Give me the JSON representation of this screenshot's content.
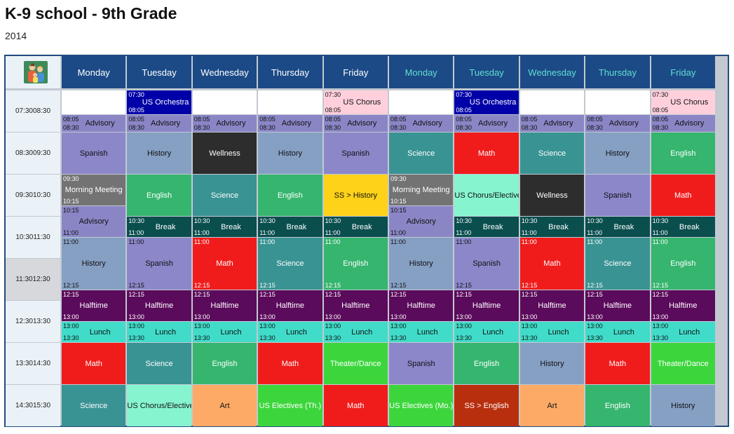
{
  "page": {
    "title": "K-9 school - 9th Grade",
    "subtitle": "2014"
  },
  "corner_icon": "family-icon",
  "days": [
    "Monday",
    "Tuesday",
    "Wednesday",
    "Thursday",
    "Friday",
    "Monday",
    "Tuesday",
    "Wednesday",
    "Thursday",
    "Friday"
  ],
  "time_rows": [
    {
      "start": "07:30",
      "end": "08:30"
    },
    {
      "start": "08:30",
      "end": "09:30"
    },
    {
      "start": "09:30",
      "end": "10:30"
    },
    {
      "start": "10:30",
      "end": "11:30"
    },
    {
      "start": "11:30",
      "end": "12:30"
    },
    {
      "start": "12:30",
      "end": "13:30"
    },
    {
      "start": "13:30",
      "end": "14:30"
    },
    {
      "start": "14:30",
      "end": "15:30"
    }
  ],
  "highlighted_time_row": 4,
  "colors": {
    "header_bg": "#1b4a86",
    "header_alt_text": "#62ddd0",
    "advisory": "#8a86c6",
    "spanish": "#8b87c9",
    "history": "#86a0c4",
    "wellness": "#2d2d2d",
    "science": "#3a9393",
    "math": "#f01c1c",
    "english": "#35b56e",
    "morning_meeting": "#737373",
    "ss_history": "#ffd21a",
    "chorus_elective": "#86f5cf",
    "break": "#0a4e4e",
    "halftime": "#5b0b5b",
    "lunch": "#40dcc9",
    "theater": "#3cd63c",
    "art": "#fdaa66",
    "us_electives": "#3cd63c",
    "ss_english": "#b82f0e",
    "orchestra": "#0000a8",
    "chorus": "#ffd0dc"
  },
  "events": [
    {
      "day": 0,
      "s": "07:30",
      "e": "08:05",
      "title": "",
      "color": "#ffffff",
      "text": "#000",
      "empty": true
    },
    {
      "day": 0,
      "s": "08:05",
      "e": "08:30",
      "title": "Advisory",
      "color": "#8a86c6",
      "text": "#111",
      "times": true
    },
    {
      "day": 0,
      "s": "08:30",
      "e": "09:30",
      "title": "Spanish",
      "color": "#8b87c9",
      "text": "#111"
    },
    {
      "day": 0,
      "s": "09:30",
      "e": "10:15",
      "title": "Morning Meeting",
      "color": "#737373",
      "text": "#fff",
      "times": true
    },
    {
      "day": 0,
      "s": "10:15",
      "e": "11:00",
      "title": "Advisory",
      "color": "#8a86c6",
      "text": "#111",
      "times": true
    },
    {
      "day": 0,
      "s": "11:00",
      "e": "12:15",
      "title": "History",
      "color": "#86a0c4",
      "text": "#111",
      "times": true
    },
    {
      "day": 0,
      "s": "12:15",
      "e": "13:00",
      "title": "Halftime",
      "color": "#5b0b5b",
      "text": "#fff",
      "times": true
    },
    {
      "day": 0,
      "s": "13:00",
      "e": "13:30",
      "title": "Lunch",
      "color": "#40dcc9",
      "text": "#111",
      "times": true
    },
    {
      "day": 0,
      "s": "13:30",
      "e": "14:30",
      "title": "Math",
      "color": "#f01c1c",
      "text": "#fff"
    },
    {
      "day": 0,
      "s": "14:30",
      "e": "15:30",
      "title": "Science",
      "color": "#3a9393",
      "text": "#fff"
    },
    {
      "day": 1,
      "s": "07:30",
      "e": "08:05",
      "title": "US Orchestra",
      "color": "#0000a8",
      "text": "#fff",
      "times": true
    },
    {
      "day": 1,
      "s": "08:05",
      "e": "08:30",
      "title": "Advisory",
      "color": "#8a86c6",
      "text": "#111",
      "times": true
    },
    {
      "day": 1,
      "s": "08:30",
      "e": "09:30",
      "title": "History",
      "color": "#86a0c4",
      "text": "#111"
    },
    {
      "day": 1,
      "s": "09:30",
      "e": "10:30",
      "title": "English",
      "color": "#35b56e",
      "text": "#fff"
    },
    {
      "day": 1,
      "s": "10:30",
      "e": "11:00",
      "title": "Break",
      "color": "#0a4e4e",
      "text": "#fff",
      "times": true
    },
    {
      "day": 1,
      "s": "11:00",
      "e": "12:15",
      "title": "Spanish",
      "color": "#8b87c9",
      "text": "#111",
      "times": true
    },
    {
      "day": 1,
      "s": "12:15",
      "e": "13:00",
      "title": "Halftime",
      "color": "#5b0b5b",
      "text": "#fff",
      "times": true
    },
    {
      "day": 1,
      "s": "13:00",
      "e": "13:30",
      "title": "Lunch",
      "color": "#40dcc9",
      "text": "#111",
      "times": true
    },
    {
      "day": 1,
      "s": "13:30",
      "e": "14:30",
      "title": "Science",
      "color": "#3a9393",
      "text": "#fff"
    },
    {
      "day": 1,
      "s": "14:30",
      "e": "15:30",
      "title": "US Chorus/Elective",
      "color": "#86f5cf",
      "text": "#111"
    },
    {
      "day": 2,
      "s": "07:30",
      "e": "08:05",
      "title": "",
      "color": "#ffffff",
      "text": "#000",
      "empty": true
    },
    {
      "day": 2,
      "s": "08:05",
      "e": "08:30",
      "title": "Advisory",
      "color": "#8a86c6",
      "text": "#111",
      "times": true
    },
    {
      "day": 2,
      "s": "08:30",
      "e": "09:30",
      "title": "Wellness",
      "color": "#2d2d2d",
      "text": "#fff"
    },
    {
      "day": 2,
      "s": "09:30",
      "e": "10:30",
      "title": "Science",
      "color": "#3a9393",
      "text": "#fff"
    },
    {
      "day": 2,
      "s": "10:30",
      "e": "11:00",
      "title": "Break",
      "color": "#0a4e4e",
      "text": "#fff",
      "times": true
    },
    {
      "day": 2,
      "s": "11:00",
      "e": "12:15",
      "title": "Math",
      "color": "#f01c1c",
      "text": "#fff",
      "times": true
    },
    {
      "day": 2,
      "s": "12:15",
      "e": "13:00",
      "title": "Halftime",
      "color": "#5b0b5b",
      "text": "#fff",
      "times": true
    },
    {
      "day": 2,
      "s": "13:00",
      "e": "13:30",
      "title": "Lunch",
      "color": "#40dcc9",
      "text": "#111",
      "times": true
    },
    {
      "day": 2,
      "s": "13:30",
      "e": "14:30",
      "title": "English",
      "color": "#35b56e",
      "text": "#fff"
    },
    {
      "day": 2,
      "s": "14:30",
      "e": "15:30",
      "title": "Art",
      "color": "#fdaa66",
      "text": "#111"
    },
    {
      "day": 3,
      "s": "07:30",
      "e": "08:05",
      "title": "",
      "color": "#ffffff",
      "text": "#000",
      "empty": true
    },
    {
      "day": 3,
      "s": "08:05",
      "e": "08:30",
      "title": "Advisory",
      "color": "#8a86c6",
      "text": "#111",
      "times": true
    },
    {
      "day": 3,
      "s": "08:30",
      "e": "09:30",
      "title": "History",
      "color": "#86a0c4",
      "text": "#111"
    },
    {
      "day": 3,
      "s": "09:30",
      "e": "10:30",
      "title": "English",
      "color": "#35b56e",
      "text": "#fff"
    },
    {
      "day": 3,
      "s": "10:30",
      "e": "11:00",
      "title": "Break",
      "color": "#0a4e4e",
      "text": "#fff",
      "times": true
    },
    {
      "day": 3,
      "s": "11:00",
      "e": "12:15",
      "title": "Science",
      "color": "#3a9393",
      "text": "#fff",
      "times": true
    },
    {
      "day": 3,
      "s": "12:15",
      "e": "13:00",
      "title": "Halftime",
      "color": "#5b0b5b",
      "text": "#fff",
      "times": true
    },
    {
      "day": 3,
      "s": "13:00",
      "e": "13:30",
      "title": "Lunch",
      "color": "#40dcc9",
      "text": "#111",
      "times": true
    },
    {
      "day": 3,
      "s": "13:30",
      "e": "14:30",
      "title": "Math",
      "color": "#f01c1c",
      "text": "#fff"
    },
    {
      "day": 3,
      "s": "14:30",
      "e": "15:30",
      "title": "US Electives (Th.)",
      "color": "#3cd63c",
      "text": "#fff"
    },
    {
      "day": 4,
      "s": "07:30",
      "e": "08:05",
      "title": "US Chorus",
      "color": "#ffd0dc",
      "text": "#111",
      "times": true
    },
    {
      "day": 4,
      "s": "08:05",
      "e": "08:30",
      "title": "Advisory",
      "color": "#8a86c6",
      "text": "#111",
      "times": true
    },
    {
      "day": 4,
      "s": "08:30",
      "e": "09:30",
      "title": "Spanish",
      "color": "#8b87c9",
      "text": "#111"
    },
    {
      "day": 4,
      "s": "09:30",
      "e": "10:30",
      "title": "SS > History",
      "color": "#ffd21a",
      "text": "#111"
    },
    {
      "day": 4,
      "s": "10:30",
      "e": "11:00",
      "title": "Break",
      "color": "#0a4e4e",
      "text": "#fff",
      "times": true
    },
    {
      "day": 4,
      "s": "11:00",
      "e": "12:15",
      "title": "English",
      "color": "#35b56e",
      "text": "#fff",
      "times": true
    },
    {
      "day": 4,
      "s": "12:15",
      "e": "13:00",
      "title": "Halftime",
      "color": "#5b0b5b",
      "text": "#fff",
      "times": true
    },
    {
      "day": 4,
      "s": "13:00",
      "e": "13:30",
      "title": "Lunch",
      "color": "#40dcc9",
      "text": "#111",
      "times": true
    },
    {
      "day": 4,
      "s": "13:30",
      "e": "14:30",
      "title": "Theater/Dance",
      "color": "#3cd63c",
      "text": "#fff"
    },
    {
      "day": 4,
      "s": "14:30",
      "e": "15:30",
      "title": "Math",
      "color": "#f01c1c",
      "text": "#fff"
    },
    {
      "day": 5,
      "s": "07:30",
      "e": "08:05",
      "title": "",
      "color": "#ffffff",
      "text": "#000",
      "empty": true
    },
    {
      "day": 5,
      "s": "08:05",
      "e": "08:30",
      "title": "Advisory",
      "color": "#8a86c6",
      "text": "#111",
      "times": true
    },
    {
      "day": 5,
      "s": "08:30",
      "e": "09:30",
      "title": "Science",
      "color": "#3a9393",
      "text": "#fff"
    },
    {
      "day": 5,
      "s": "09:30",
      "e": "10:15",
      "title": "Morning Meeting",
      "color": "#737373",
      "text": "#fff",
      "times": true
    },
    {
      "day": 5,
      "s": "10:15",
      "e": "11:00",
      "title": "Advisory",
      "color": "#8a86c6",
      "text": "#111",
      "times": true
    },
    {
      "day": 5,
      "s": "11:00",
      "e": "12:15",
      "title": "History",
      "color": "#86a0c4",
      "text": "#111",
      "times": true
    },
    {
      "day": 5,
      "s": "12:15",
      "e": "13:00",
      "title": "Halftime",
      "color": "#5b0b5b",
      "text": "#fff",
      "times": true
    },
    {
      "day": 5,
      "s": "13:00",
      "e": "13:30",
      "title": "Lunch",
      "color": "#40dcc9",
      "text": "#111",
      "times": true
    },
    {
      "day": 5,
      "s": "13:30",
      "e": "14:30",
      "title": "Spanish",
      "color": "#8b87c9",
      "text": "#111"
    },
    {
      "day": 5,
      "s": "14:30",
      "e": "15:30",
      "title": "US Electives (Mo.)",
      "color": "#3cd63c",
      "text": "#fff"
    },
    {
      "day": 6,
      "s": "07:30",
      "e": "08:05",
      "title": "US Orchestra",
      "color": "#0000a8",
      "text": "#fff",
      "times": true
    },
    {
      "day": 6,
      "s": "08:05",
      "e": "08:30",
      "title": "Advisory",
      "color": "#8a86c6",
      "text": "#111",
      "times": true
    },
    {
      "day": 6,
      "s": "08:30",
      "e": "09:30",
      "title": "Math",
      "color": "#f01c1c",
      "text": "#fff"
    },
    {
      "day": 6,
      "s": "09:30",
      "e": "10:30",
      "title": "US Chorus/Elective",
      "color": "#86f5cf",
      "text": "#111"
    },
    {
      "day": 6,
      "s": "10:30",
      "e": "11:00",
      "title": "Break",
      "color": "#0a4e4e",
      "text": "#fff",
      "times": true
    },
    {
      "day": 6,
      "s": "11:00",
      "e": "12:15",
      "title": "Spanish",
      "color": "#8b87c9",
      "text": "#111",
      "times": true
    },
    {
      "day": 6,
      "s": "12:15",
      "e": "13:00",
      "title": "Halftime",
      "color": "#5b0b5b",
      "text": "#fff",
      "times": true
    },
    {
      "day": 6,
      "s": "13:00",
      "e": "13:30",
      "title": "Lunch",
      "color": "#40dcc9",
      "text": "#111",
      "times": true
    },
    {
      "day": 6,
      "s": "13:30",
      "e": "14:30",
      "title": "English",
      "color": "#35b56e",
      "text": "#fff"
    },
    {
      "day": 6,
      "s": "14:30",
      "e": "15:30",
      "title": "SS > English",
      "color": "#b82f0e",
      "text": "#fff"
    },
    {
      "day": 7,
      "s": "07:30",
      "e": "08:05",
      "title": "",
      "color": "#ffffff",
      "text": "#000",
      "empty": true
    },
    {
      "day": 7,
      "s": "08:05",
      "e": "08:30",
      "title": "Advisory",
      "color": "#8a86c6",
      "text": "#111",
      "times": true
    },
    {
      "day": 7,
      "s": "08:30",
      "e": "09:30",
      "title": "Science",
      "color": "#3a9393",
      "text": "#fff"
    },
    {
      "day": 7,
      "s": "09:30",
      "e": "10:30",
      "title": "Wellness",
      "color": "#2d2d2d",
      "text": "#fff"
    },
    {
      "day": 7,
      "s": "10:30",
      "e": "11:00",
      "title": "Break",
      "color": "#0a4e4e",
      "text": "#fff",
      "times": true
    },
    {
      "day": 7,
      "s": "11:00",
      "e": "12:15",
      "title": "Math",
      "color": "#f01c1c",
      "text": "#fff",
      "times": true
    },
    {
      "day": 7,
      "s": "12:15",
      "e": "13:00",
      "title": "Halftime",
      "color": "#5b0b5b",
      "text": "#fff",
      "times": true
    },
    {
      "day": 7,
      "s": "13:00",
      "e": "13:30",
      "title": "Lunch",
      "color": "#40dcc9",
      "text": "#111",
      "times": true
    },
    {
      "day": 7,
      "s": "13:30",
      "e": "14:30",
      "title": "History",
      "color": "#86a0c4",
      "text": "#111"
    },
    {
      "day": 7,
      "s": "14:30",
      "e": "15:30",
      "title": "Art",
      "color": "#fdaa66",
      "text": "#111"
    },
    {
      "day": 8,
      "s": "07:30",
      "e": "08:05",
      "title": "",
      "color": "#ffffff",
      "text": "#000",
      "empty": true
    },
    {
      "day": 8,
      "s": "08:05",
      "e": "08:30",
      "title": "Advisory",
      "color": "#8a86c6",
      "text": "#111",
      "times": true
    },
    {
      "day": 8,
      "s": "08:30",
      "e": "09:30",
      "title": "History",
      "color": "#86a0c4",
      "text": "#111"
    },
    {
      "day": 8,
      "s": "09:30",
      "e": "10:30",
      "title": "Spanish",
      "color": "#8b87c9",
      "text": "#111"
    },
    {
      "day": 8,
      "s": "10:30",
      "e": "11:00",
      "title": "Break",
      "color": "#0a4e4e",
      "text": "#fff",
      "times": true
    },
    {
      "day": 8,
      "s": "11:00",
      "e": "12:15",
      "title": "Science",
      "color": "#3a9393",
      "text": "#fff",
      "times": true
    },
    {
      "day": 8,
      "s": "12:15",
      "e": "13:00",
      "title": "Halftime",
      "color": "#5b0b5b",
      "text": "#fff",
      "times": true
    },
    {
      "day": 8,
      "s": "13:00",
      "e": "13:30",
      "title": "Lunch",
      "color": "#40dcc9",
      "text": "#111",
      "times": true
    },
    {
      "day": 8,
      "s": "13:30",
      "e": "14:30",
      "title": "Math",
      "color": "#f01c1c",
      "text": "#fff"
    },
    {
      "day": 8,
      "s": "14:30",
      "e": "15:30",
      "title": "English",
      "color": "#35b56e",
      "text": "#fff"
    },
    {
      "day": 9,
      "s": "07:30",
      "e": "08:05",
      "title": "US Chorus",
      "color": "#ffd0dc",
      "text": "#111",
      "times": true
    },
    {
      "day": 9,
      "s": "08:05",
      "e": "08:30",
      "title": "Advisory",
      "color": "#8a86c6",
      "text": "#111",
      "times": true
    },
    {
      "day": 9,
      "s": "08:30",
      "e": "09:30",
      "title": "English",
      "color": "#35b56e",
      "text": "#fff"
    },
    {
      "day": 9,
      "s": "09:30",
      "e": "10:30",
      "title": "Math",
      "color": "#f01c1c",
      "text": "#fff"
    },
    {
      "day": 9,
      "s": "10:30",
      "e": "11:00",
      "title": "Break",
      "color": "#0a4e4e",
      "text": "#fff",
      "times": true
    },
    {
      "day": 9,
      "s": "11:00",
      "e": "12:15",
      "title": "English",
      "color": "#35b56e",
      "text": "#fff",
      "times": true
    },
    {
      "day": 9,
      "s": "12:15",
      "e": "13:00",
      "title": "Halftime",
      "color": "#5b0b5b",
      "text": "#fff",
      "times": true
    },
    {
      "day": 9,
      "s": "13:00",
      "e": "13:30",
      "title": "Lunch",
      "color": "#40dcc9",
      "text": "#111",
      "times": true
    },
    {
      "day": 9,
      "s": "13:30",
      "e": "14:30",
      "title": "Theater/Dance",
      "color": "#3cd63c",
      "text": "#fff"
    },
    {
      "day": 9,
      "s": "14:30",
      "e": "15:30",
      "title": "History",
      "color": "#86a0c4",
      "text": "#111"
    }
  ]
}
